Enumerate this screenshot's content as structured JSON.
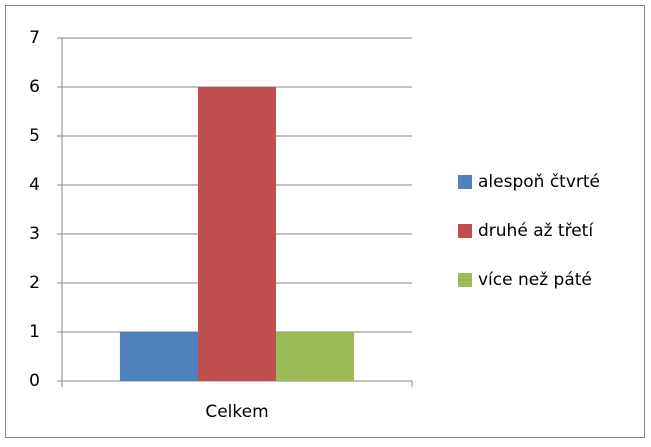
{
  "chart_data": {
    "type": "bar",
    "categories": [
      "Celkem"
    ],
    "series": [
      {
        "name": "alespoň čtvrté",
        "color": "#4f81bd",
        "values": [
          1
        ]
      },
      {
        "name": "druhé až třetí",
        "color": "#c0504d",
        "values": [
          6
        ]
      },
      {
        "name": "více než páté",
        "color": "#9bbb59",
        "values": [
          1
        ]
      }
    ],
    "ylim": [
      0,
      7
    ],
    "yticks": [
      0,
      1,
      2,
      3,
      4,
      5,
      6,
      7
    ],
    "grid": true,
    "legend": "right"
  }
}
